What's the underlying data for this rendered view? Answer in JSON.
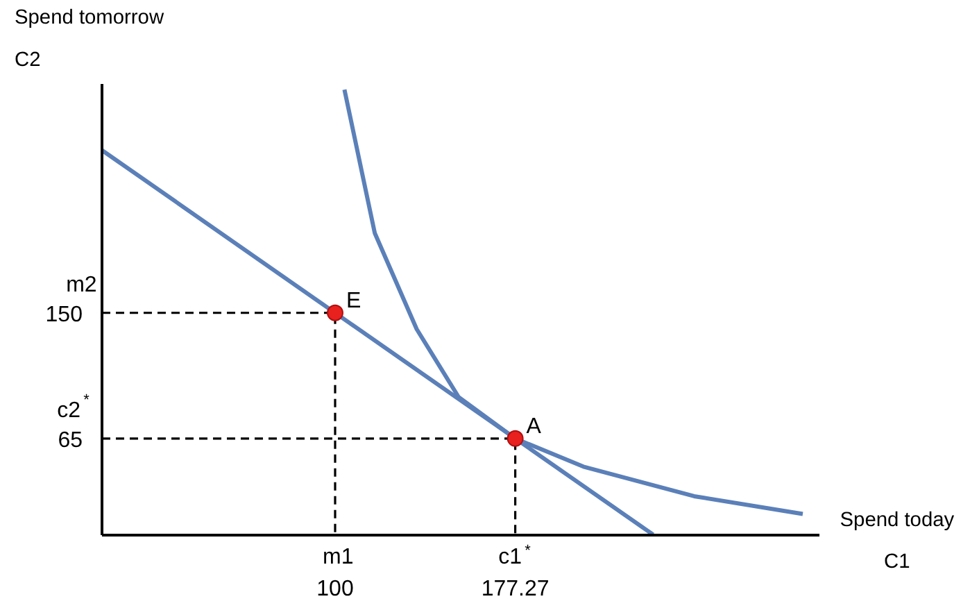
{
  "chart_data": {
    "type": "line",
    "xlabel": "Spend today\nC1",
    "ylabel": "Spend tomorrow\nC2",
    "xlim": [
      0,
      307.7
    ],
    "ylim": [
      0,
      305
    ],
    "xticks": [
      100,
      177.27
    ],
    "yticks": [
      65,
      150
    ],
    "grid": false,
    "series": [
      {
        "color": "#5b80b9",
        "x": [
          0,
          236.4
        ],
        "values": [
          260,
          0
        ],
        "line_style": "solid"
      },
      {
        "color": "#5b80b9",
        "x": [
          104,
          117,
          135,
          153,
          177.27,
          206.5,
          254,
          300.6
        ],
        "values": [
          301,
          204,
          139,
          93,
          65,
          46,
          26,
          14
        ],
        "line_style": "solid"
      },
      {
        "color": "#000000",
        "x": [
          0,
          100,
          100
        ],
        "values": [
          150,
          150,
          0
        ],
        "line_style": "dashed"
      },
      {
        "color": "#000000",
        "x": [
          0,
          177.27,
          177.27
        ],
        "values": [
          65,
          65,
          0
        ],
        "line_style": "dashed"
      },
      {
        "type": "scatter",
        "color": "#e8201e",
        "x": [
          100,
          177.27
        ],
        "values": [
          150,
          65
        ],
        "marker": "circle"
      }
    ],
    "annotations": [
      {
        "text": "E",
        "x": 100,
        "y": 150
      },
      {
        "text": "A",
        "x": 177.27,
        "y": 65
      },
      {
        "text": "m1",
        "x": 100,
        "y": 0
      },
      {
        "text": "c1$^{*}$",
        "x": 177.27,
        "y": 0
      },
      {
        "text": "m2",
        "x": 0,
        "y": 150
      },
      {
        "text": "c2$^{*}$",
        "x": 0,
        "y": 65
      }
    ]
  }
}
